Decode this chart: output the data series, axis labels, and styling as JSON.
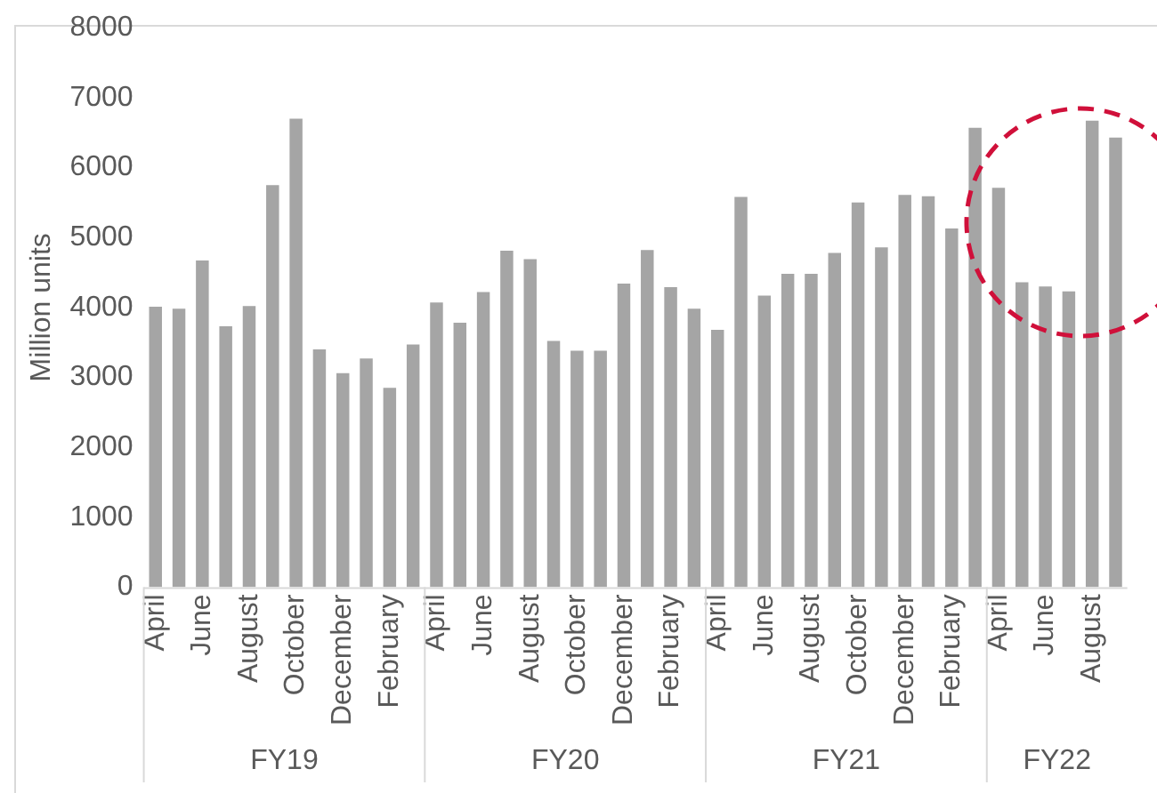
{
  "chart_data": {
    "type": "bar",
    "ylabel": "Million units",
    "categories": [
      "April",
      null,
      "June",
      null,
      "August",
      null,
      "October",
      null,
      "December",
      null,
      "February",
      null,
      "April",
      null,
      "June",
      null,
      "August",
      null,
      "October",
      null,
      "December",
      null,
      "February",
      null,
      "April",
      null,
      "June",
      null,
      "August",
      null,
      "October",
      null,
      "December",
      null,
      "February",
      null,
      "April",
      null,
      "June",
      null,
      "August",
      null
    ],
    "values": [
      4010,
      3980,
      4670,
      3730,
      4020,
      5750,
      6700,
      3400,
      3060,
      3270,
      2850,
      3470,
      4070,
      3780,
      4220,
      4810,
      4690,
      3520,
      3380,
      3380,
      4340,
      4820,
      4290,
      3980,
      3680,
      5580,
      4170,
      4480,
      4480,
      4780,
      5500,
      4860,
      5610,
      5590,
      5130,
      6570,
      5710,
      4360,
      4300,
      4230,
      6670,
      6430
    ],
    "color": "#a5a5a5",
    "ylim": [
      0,
      8000
    ],
    "yticks": [
      0,
      1000,
      2000,
      3000,
      4000,
      5000,
      6000,
      7000,
      8000
    ],
    "grid": false,
    "legend": false,
    "annotations": [
      "FY19",
      "FY20",
      "FY21",
      "FY22"
    ]
  }
}
